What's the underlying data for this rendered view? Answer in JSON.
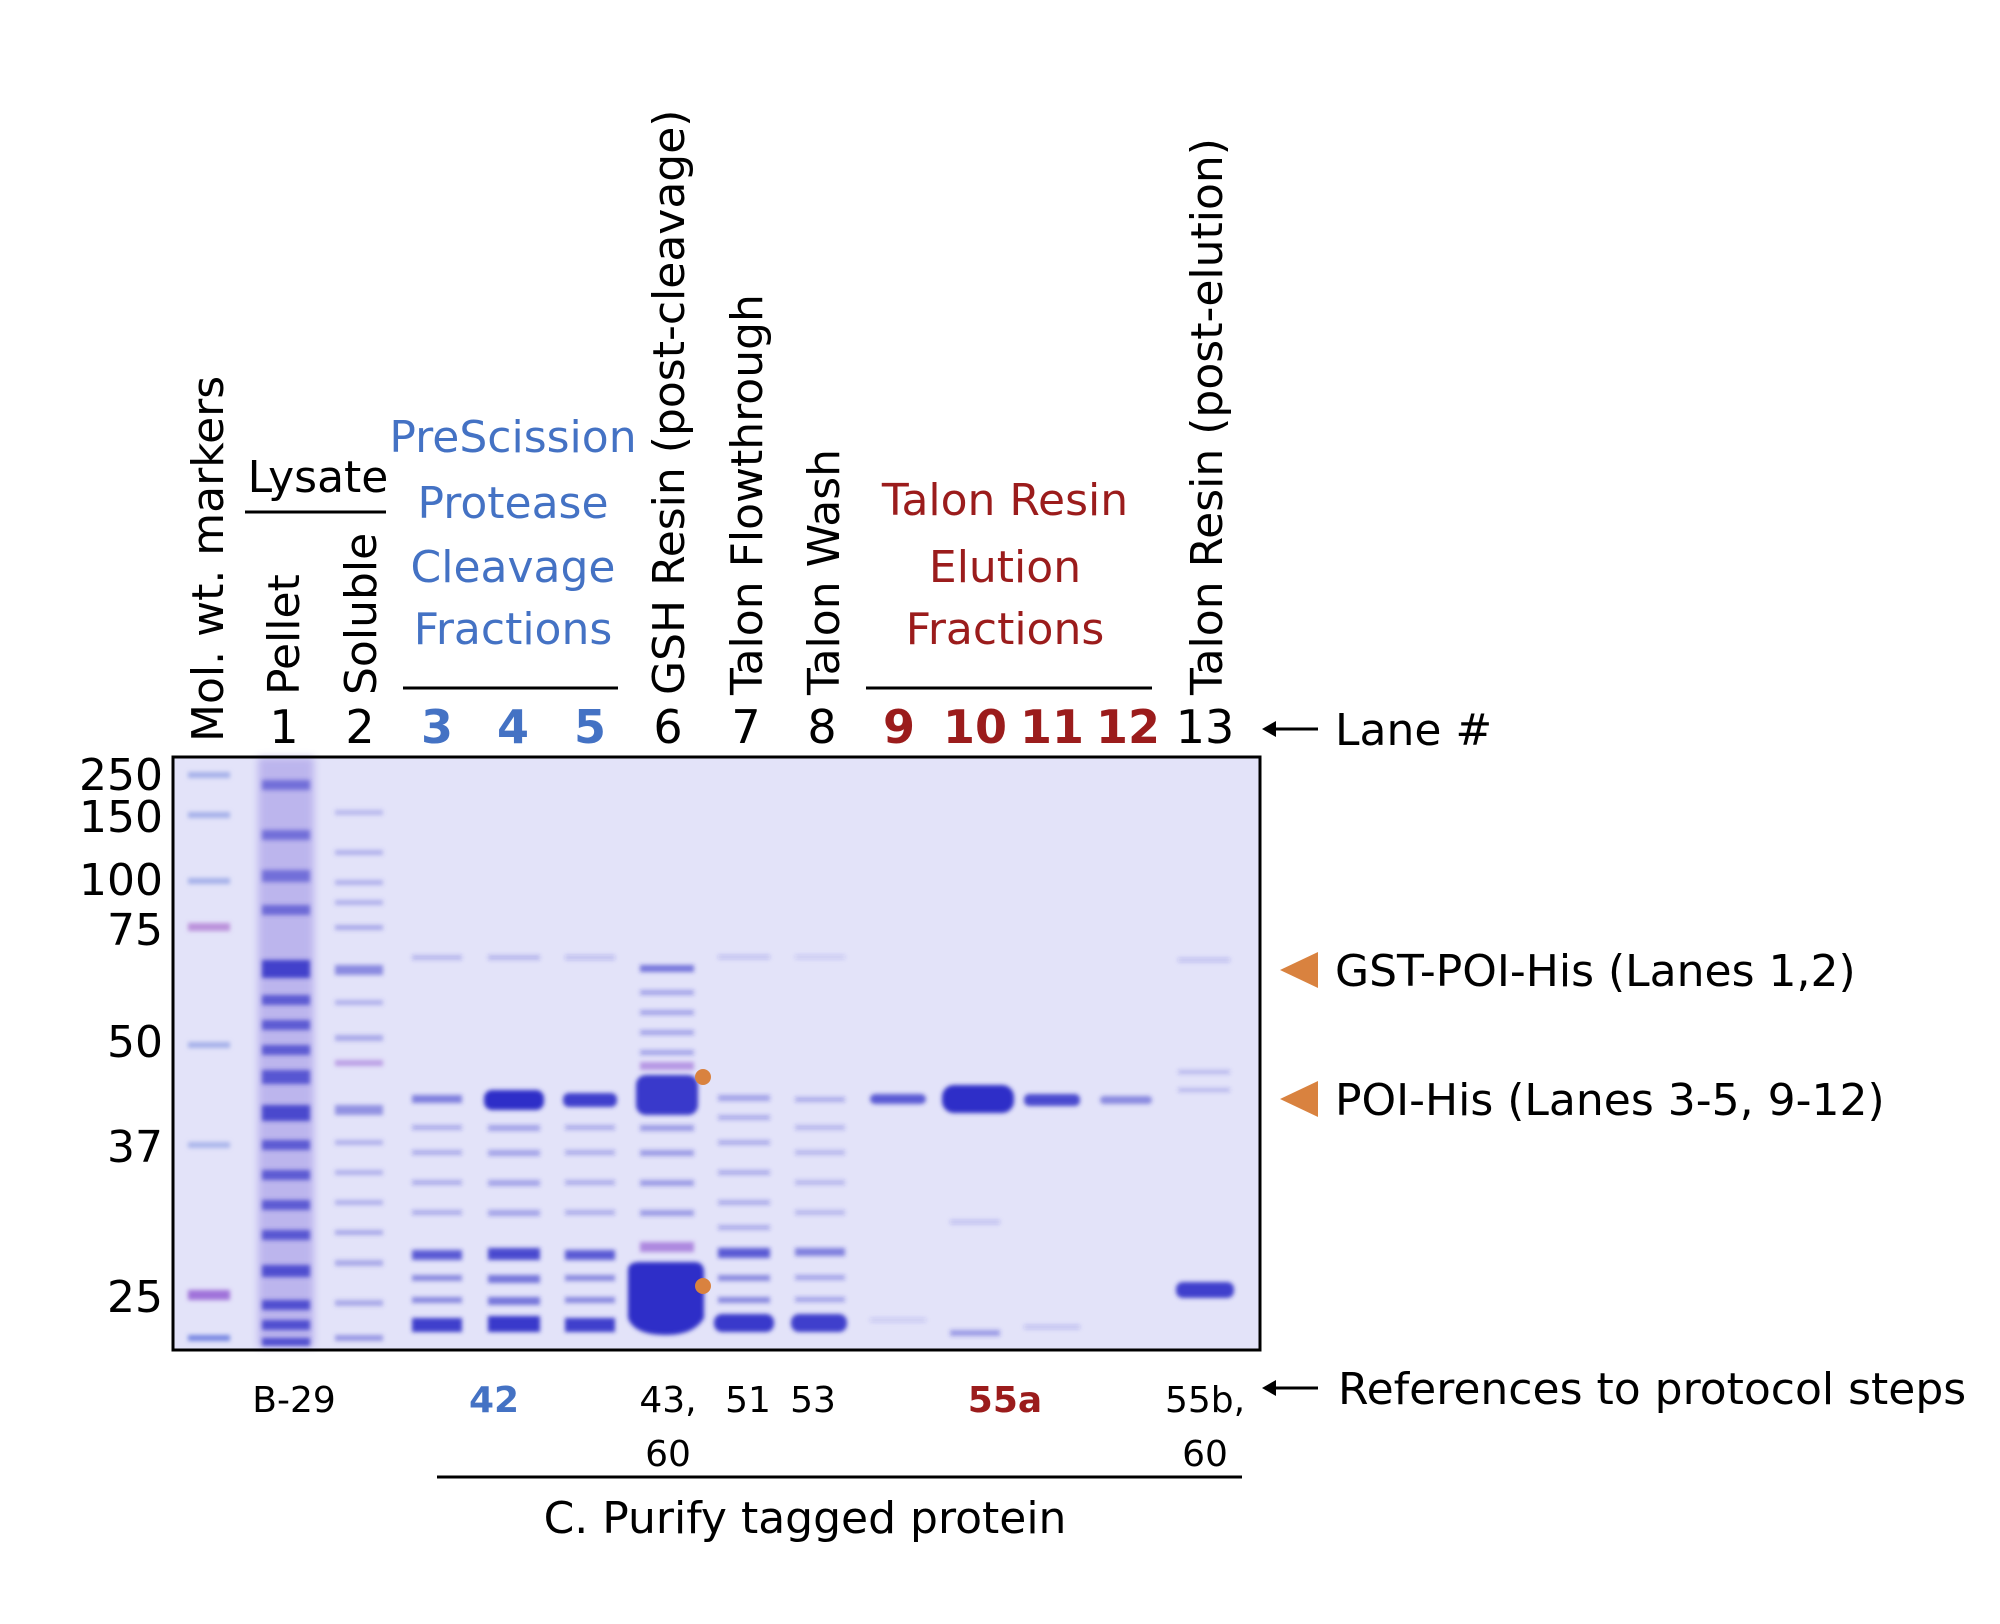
{
  "colors": {
    "blue": "#4472c4",
    "red": "#9b1c1c",
    "black": "#000000",
    "orange": "#d9823f",
    "gel_bg": "#e6e6fa",
    "band": "#2f2fc8"
  },
  "lane_headers": [
    {
      "id": "markers",
      "text": "Mol. wt. markers"
    },
    {
      "id": "pellet",
      "text": "Pellet"
    },
    {
      "id": "soluble",
      "text": "Soluble"
    },
    {
      "id": "gsh",
      "text": "GSH Resin (post-cleavage)"
    },
    {
      "id": "flowthrough",
      "text": "Talon Flowthrough"
    },
    {
      "id": "wash",
      "text": "Talon Wash"
    },
    {
      "id": "talon_post",
      "text": "Talon Resin (post-elution)"
    }
  ],
  "group_labels": {
    "lysate": "Lysate",
    "prescission": [
      "PreScission",
      "Protease",
      "Cleavage",
      "Fractions"
    ],
    "talon_elution": [
      "Talon Resin",
      "Elution",
      "Fractions"
    ]
  },
  "lane_numbers": [
    {
      "n": "1",
      "color": "black"
    },
    {
      "n": "2",
      "color": "black"
    },
    {
      "n": "3",
      "color": "blue"
    },
    {
      "n": "4",
      "color": "blue"
    },
    {
      "n": "5",
      "color": "blue"
    },
    {
      "n": "6",
      "color": "black"
    },
    {
      "n": "7",
      "color": "black"
    },
    {
      "n": "8",
      "color": "black"
    },
    {
      "n": "9",
      "color": "red"
    },
    {
      "n": "10",
      "color": "red"
    },
    {
      "n": "11",
      "color": "red"
    },
    {
      "n": "12",
      "color": "red"
    },
    {
      "n": "13",
      "color": "black"
    }
  ],
  "lane_number_label": "Lane #",
  "mw_markers": [
    "250",
    "150",
    "100",
    "75",
    "50",
    "37",
    "25"
  ],
  "band_annotations": [
    {
      "text": "GST-POI-His (Lanes 1,2)"
    },
    {
      "text": "POI-His (Lanes 3-5, 9-12)"
    }
  ],
  "protocol_refs": [
    {
      "text": "B-29",
      "color": "black"
    },
    {
      "text": "42",
      "color": "blue"
    },
    {
      "text": "43,",
      "color": "black"
    },
    {
      "text": "60",
      "color": "black"
    },
    {
      "text": "51",
      "color": "black"
    },
    {
      "text": "53",
      "color": "black"
    },
    {
      "text": "55a",
      "color": "red"
    },
    {
      "text": "55b,",
      "color": "black"
    },
    {
      "text": "60",
      "color": "black"
    }
  ],
  "protocol_refs_label": "References to protocol steps",
  "section_label": "C. Purify tagged protein"
}
